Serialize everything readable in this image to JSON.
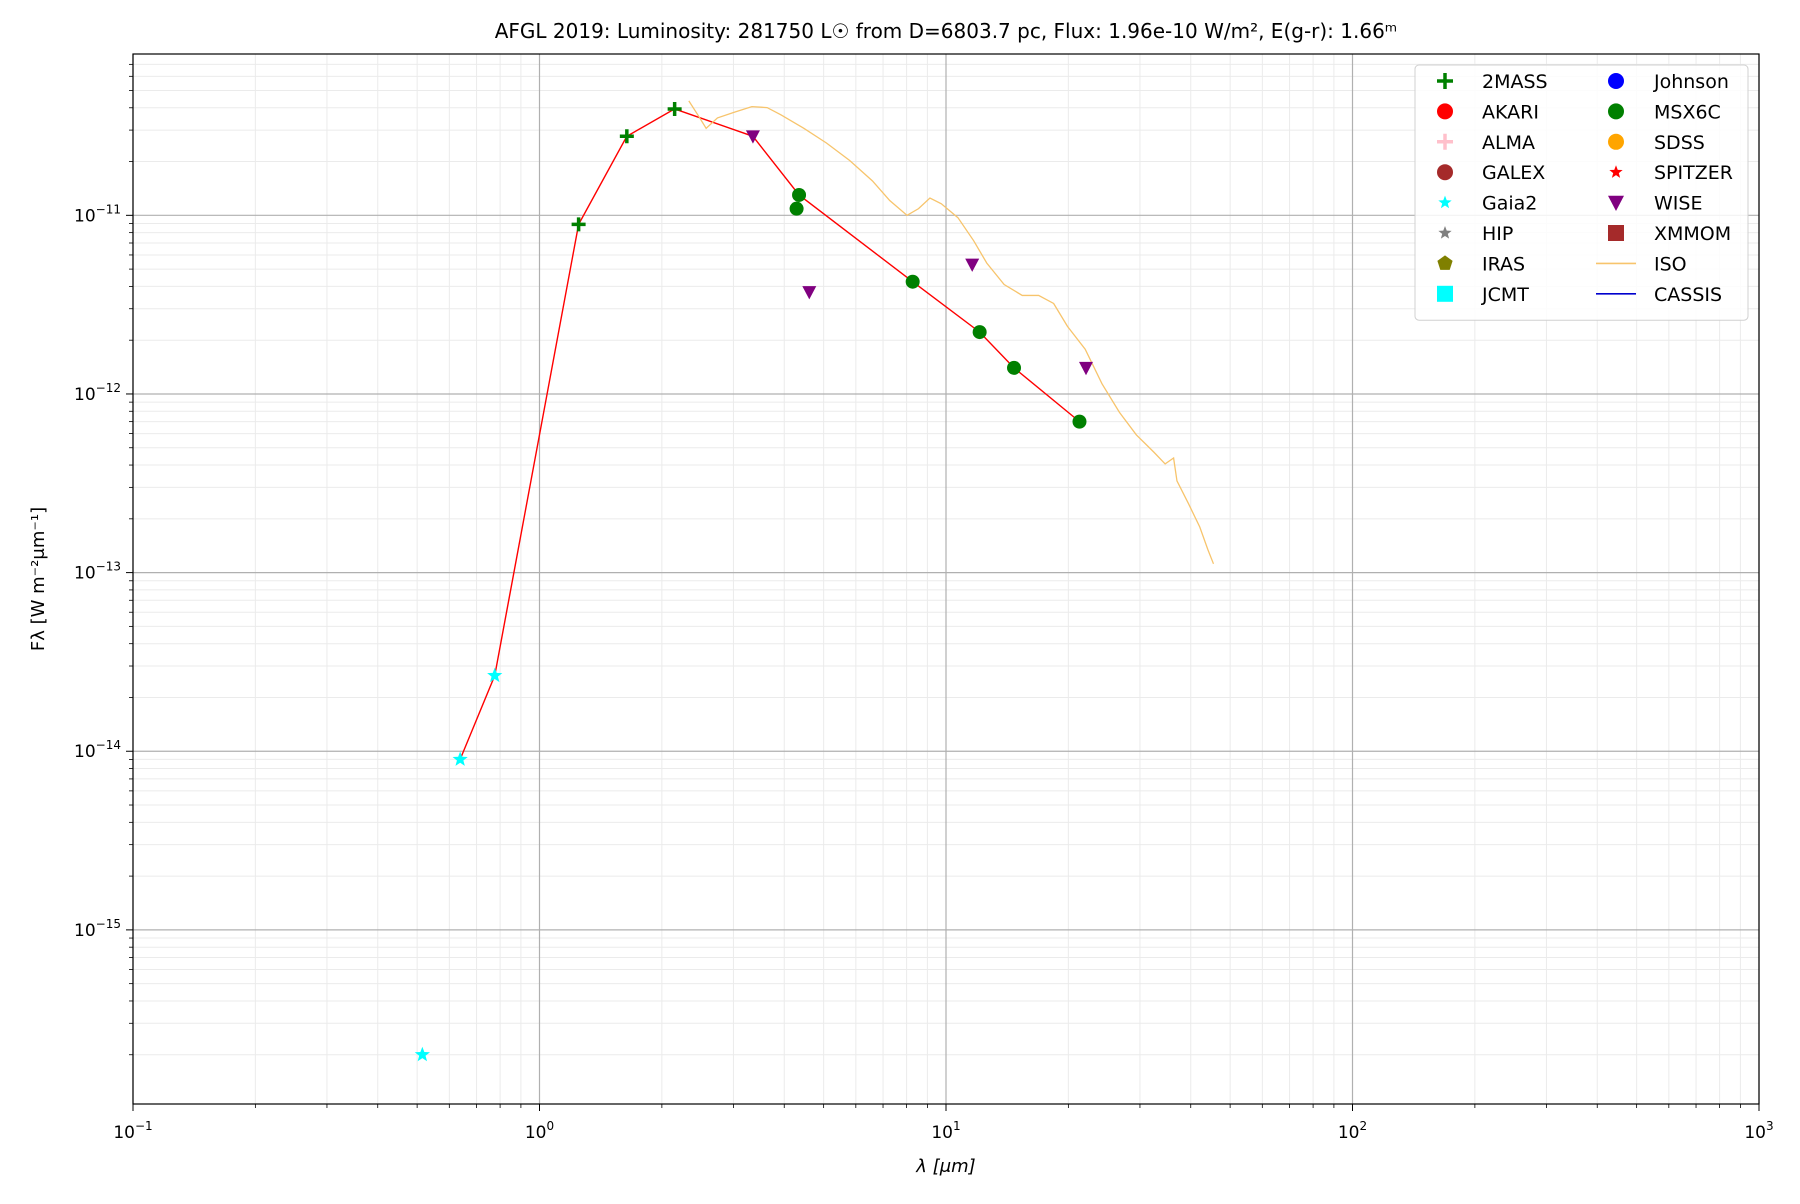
{
  "chart_data": {
    "type": "scatter",
    "title": "AFGL 2019:  Luminosity: 281750 L☉ from D=6803.7 pc, Flux: 1.96e-10 W/m², E(g-r): 1.66ᵐ",
    "x_label": "λ [μm]",
    "y_label": "Fλ [W m⁻²μm⁻¹]",
    "xscale": "log",
    "yscale": "log",
    "xlim": [
      0.1,
      1000
    ],
    "ylim": [
      1.06e-16,
      8e-11
    ],
    "xticks": [
      {
        "value": 0.1,
        "label": "10",
        "exponent": "−1"
      },
      {
        "value": 1,
        "label": "10",
        "exponent": "0"
      },
      {
        "value": 10,
        "label": "10",
        "exponent": "1"
      },
      {
        "value": 100,
        "label": "10",
        "exponent": "2"
      },
      {
        "value": 1000,
        "label": "10",
        "exponent": "3"
      }
    ],
    "yticks": [
      {
        "value": 1e-15,
        "label": "10",
        "exponent": "−15"
      },
      {
        "value": 1e-14,
        "label": "10",
        "exponent": "−14"
      },
      {
        "value": 1e-13,
        "label": "10",
        "exponent": "−13"
      },
      {
        "value": 1e-12,
        "label": "10",
        "exponent": "−12"
      },
      {
        "value": 1e-11,
        "label": "10",
        "exponent": "−11"
      }
    ],
    "grid": true,
    "minor_grid": true,
    "legend": "upper right",
    "series": [
      {
        "marker": "line",
        "color": "#ff0000",
        "x": [
          0.638,
          0.776,
          1.248,
          1.64,
          2.15,
          3.35,
          4.35,
          8.28,
          12.1,
          14.7,
          21.3
        ],
        "values": [
          9e-15,
          2.65e-14,
          8.9e-12,
          2.77e-11,
          3.94e-11,
          2.77e-11,
          1.3e-11,
          4.25e-12,
          2.22e-12,
          1.4e-12,
          7e-13
        ]
      },
      {
        "name": "ISO",
        "marker": "line",
        "color": "#f7c46c",
        "x": [
          2.33,
          2.45,
          2.57,
          2.74,
          3.02,
          3.33,
          3.63,
          3.92,
          4.47,
          5.08,
          5.79,
          6.59,
          7.27,
          8.02,
          8.56,
          9.13,
          9.74,
          10.7,
          11.7,
          12.6,
          13.9,
          15.4,
          16.9,
          18.4,
          19.9,
          22.0,
          24.2,
          26.7,
          29.4,
          32.5,
          34.6,
          36.3,
          37.0,
          39.5,
          42.1,
          44.1,
          45.5
        ],
        "values": [
          4.37e-11,
          3.66e-11,
          3.07e-11,
          3.51e-11,
          3.78e-11,
          4.06e-11,
          4.01e-11,
          3.66e-11,
          3.07e-11,
          2.54e-11,
          2.03e-11,
          1.56e-11,
          1.21e-11,
          1e-11,
          1.09e-11,
          1.25e-11,
          1.16e-11,
          9.7e-12,
          7.2e-12,
          5.4e-12,
          4.1e-12,
          3.56e-12,
          3.56e-12,
          3.21e-12,
          2.39e-12,
          1.78e-12,
          1.14e-12,
          7.9e-13,
          5.9e-13,
          4.71e-13,
          4.06e-13,
          4.38e-13,
          3.26e-13,
          2.43e-13,
          1.8e-13,
          1.34e-13,
          1.12e-13
        ]
      },
      {
        "name": "CASSIS",
        "marker": "line",
        "color": "#0000cd",
        "x": [],
        "values": []
      },
      {
        "name": "2MASS",
        "marker": "plus",
        "color": "#008000",
        "x": [
          1.248,
          1.64,
          2.15
        ],
        "values": [
          8.9e-12,
          2.77e-11,
          3.94e-11
        ]
      },
      {
        "name": "AKARI",
        "marker": "circle",
        "color": "#ff0000",
        "x": [],
        "values": []
      },
      {
        "name": "ALMA",
        "marker": "plus",
        "color": "#ffc0cb",
        "x": [],
        "values": []
      },
      {
        "name": "GALEX",
        "marker": "circle",
        "color": "#a52a2a",
        "x": [],
        "values": []
      },
      {
        "name": "Gaia2",
        "marker": "star",
        "color": "#00ffff",
        "x": [
          0.515,
          0.638,
          0.776
        ],
        "values": [
          2e-16,
          9e-15,
          2.65e-14
        ]
      },
      {
        "name": "HIP",
        "marker": "star",
        "color": "#808080",
        "x": [],
        "values": []
      },
      {
        "name": "IRAS",
        "marker": "pentagon",
        "color": "#808000",
        "x": [],
        "values": []
      },
      {
        "name": "JCMT",
        "marker": "square",
        "color": "#00ffff",
        "x": [],
        "values": []
      },
      {
        "name": "Johnson",
        "marker": "circle",
        "color": "#0000ff",
        "x": [],
        "values": []
      },
      {
        "name": "MSX6C",
        "marker": "circle",
        "color": "#008000",
        "x": [
          4.29,
          4.35,
          8.28,
          12.1,
          14.7,
          21.3
        ],
        "values": [
          1.09e-11,
          1.3e-11,
          4.25e-12,
          2.22e-12,
          1.4e-12,
          7e-13
        ]
      },
      {
        "name": "SDSS",
        "marker": "circle",
        "color": "#ffa500",
        "x": [],
        "values": []
      },
      {
        "name": "SPITZER",
        "marker": "star",
        "color": "#ff0000",
        "x": [],
        "values": []
      },
      {
        "name": "WISE",
        "marker": "triangle-down",
        "color": "#800080",
        "x": [
          3.35,
          4.61,
          11.6,
          22.1
        ],
        "values": [
          2.77e-11,
          3.72e-12,
          5.3e-12,
          1.4e-12
        ]
      },
      {
        "name": "XMMOM",
        "marker": "square",
        "color": "#a52a2a",
        "x": [],
        "values": []
      }
    ],
    "legend_order": [
      3,
      4,
      5,
      6,
      7,
      8,
      9,
      10,
      11,
      12,
      13,
      14,
      15,
      16,
      1,
      2
    ]
  }
}
